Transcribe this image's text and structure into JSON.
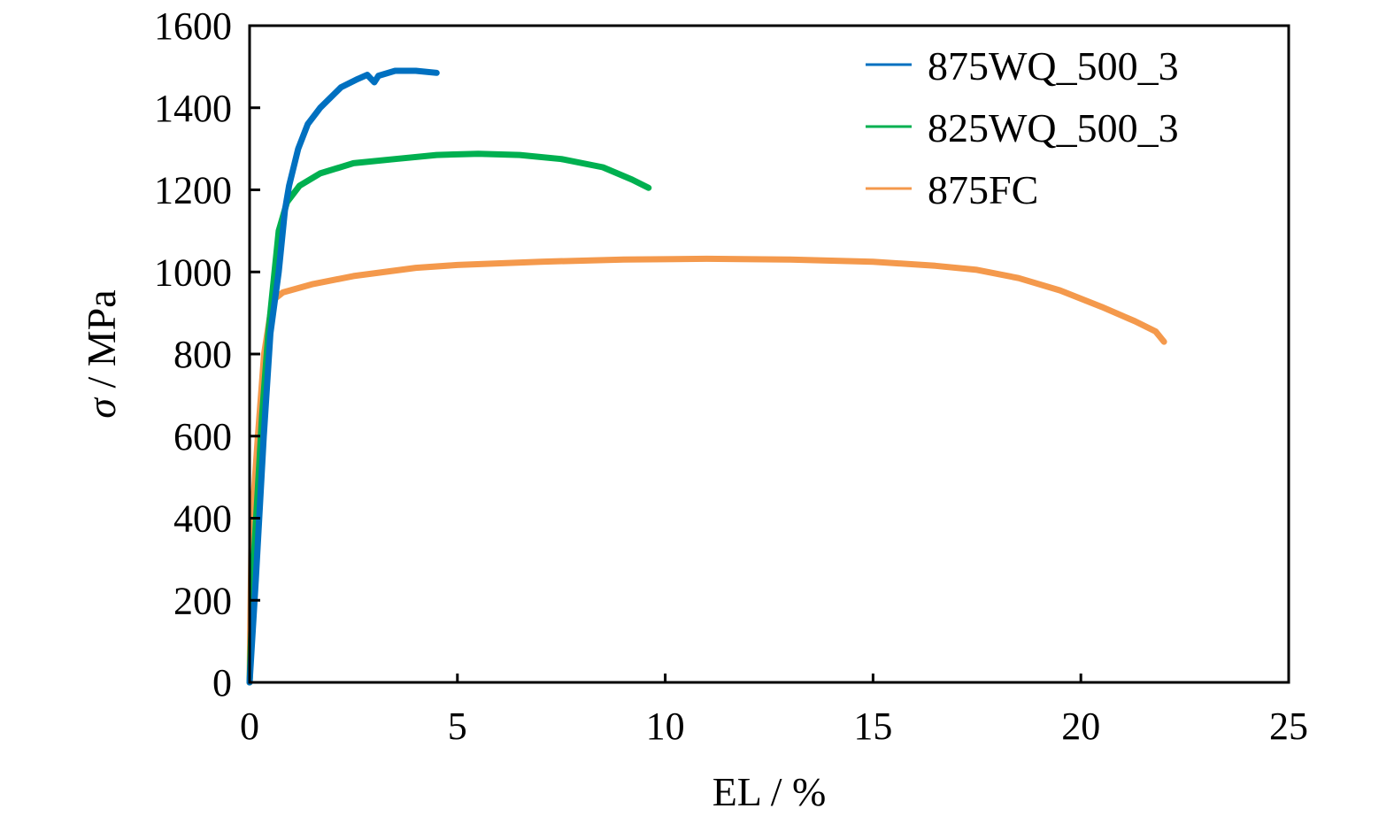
{
  "chart_data": {
    "type": "line",
    "title": "",
    "xlabel": "EL / %",
    "ylabel_symbol": "σ",
    "ylabel_unit": " / MPa",
    "xlim": [
      0,
      25
    ],
    "ylim": [
      0,
      1600
    ],
    "xticks": [
      0,
      5,
      10,
      15,
      20,
      25
    ],
    "yticks": [
      0,
      200,
      400,
      600,
      800,
      1000,
      1200,
      1400,
      1600
    ],
    "grid": false,
    "legend_position": "top-right",
    "series": [
      {
        "name": "875WQ_500_3",
        "color": "#0070c0",
        "x": [
          0,
          0.15,
          0.34,
          0.5,
          0.7,
          0.85,
          0.95,
          1.17,
          1.4,
          1.7,
          2.2,
          2.6,
          2.83,
          3.0,
          3.1,
          3.5,
          4.0,
          4.5
        ],
        "y": [
          0,
          250,
          600,
          850,
          1000,
          1150,
          1210,
          1300,
          1360,
          1400,
          1450,
          1470,
          1480,
          1462,
          1478,
          1490,
          1490,
          1485
        ]
      },
      {
        "name": "825WQ_500_3",
        "color": "#00b050",
        "x": [
          0,
          0.1,
          0.3,
          0.45,
          0.55,
          0.7,
          0.9,
          1.2,
          1.7,
          2.5,
          3.5,
          4.5,
          5.5,
          6.5,
          7.5,
          8.5,
          9.2,
          9.6
        ],
        "y": [
          0,
          300,
          650,
          850,
          950,
          1100,
          1170,
          1210,
          1240,
          1265,
          1275,
          1285,
          1288,
          1285,
          1275,
          1255,
          1225,
          1205
        ]
      },
      {
        "name": "875FC",
        "color": "#f4994c",
        "x": [
          0,
          0.05,
          0.2,
          0.35,
          0.55,
          0.8,
          1.5,
          2.5,
          4,
          5,
          7,
          9,
          11,
          13,
          15,
          16.5,
          17.5,
          18.5,
          19.5,
          20.5,
          21.3,
          21.8,
          22.0
        ],
        "y": [
          0,
          380,
          600,
          800,
          930,
          950,
          970,
          990,
          1010,
          1017,
          1025,
          1030,
          1032,
          1030,
          1025,
          1015,
          1005,
          985,
          955,
          915,
          880,
          855,
          830
        ]
      }
    ]
  }
}
